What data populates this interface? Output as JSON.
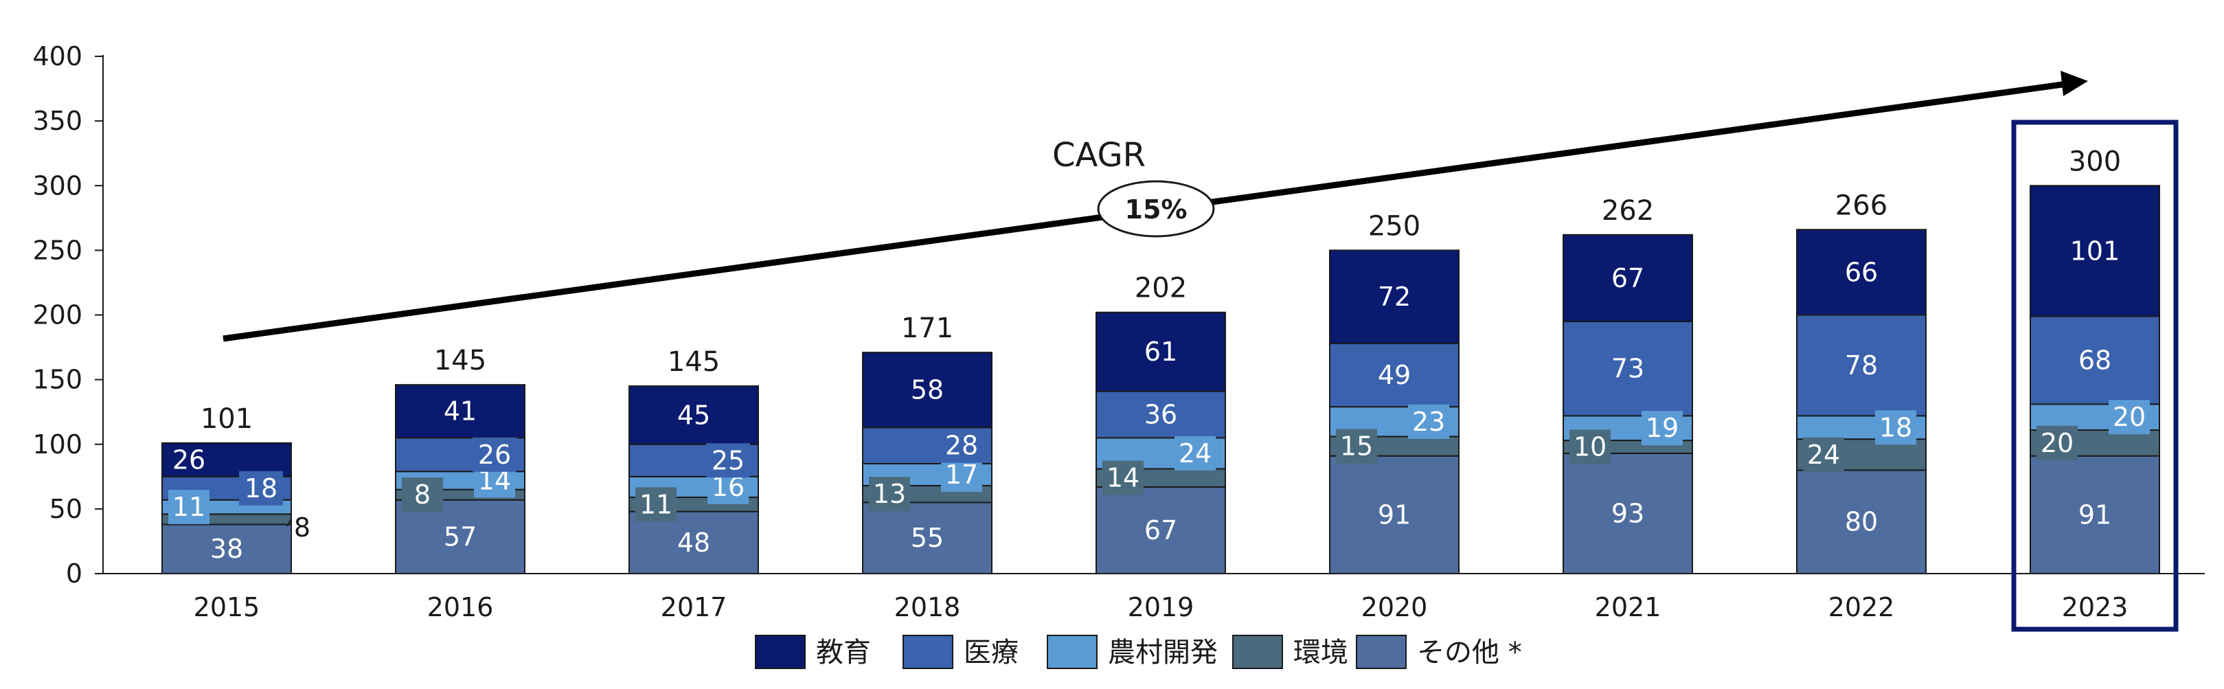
{
  "chart_data": {
    "type": "bar",
    "stacked": true,
    "categories": [
      "2015",
      "2016",
      "2017",
      "2018",
      "2019",
      "2020",
      "2021",
      "2022",
      "2023"
    ],
    "series": [
      {
        "name": "その他 *",
        "color": "#4f6d9e",
        "values": [
          38,
          57,
          48,
          55,
          67,
          91,
          93,
          80,
          91
        ]
      },
      {
        "name": "環境",
        "color": "#4a6a7d",
        "values": [
          8,
          8,
          11,
          13,
          14,
          15,
          10,
          24,
          20
        ]
      },
      {
        "name": "農村開発",
        "color": "#5b9bd5",
        "values": [
          11,
          14,
          16,
          17,
          24,
          23,
          19,
          18,
          20
        ]
      },
      {
        "name": "医療",
        "color": "#3a62ad",
        "values": [
          18,
          26,
          25,
          28,
          36,
          49,
          73,
          78,
          68
        ]
      },
      {
        "name": "教育",
        "color": "#0a1a6e",
        "values": [
          26,
          41,
          45,
          58,
          61,
          72,
          67,
          66,
          101
        ]
      }
    ],
    "totals": [
      101,
      145,
      145,
      171,
      202,
      250,
      262,
      266,
      300
    ],
    "legend_order": [
      "教育",
      "医療",
      "農村開発",
      "環境",
      "その他 *"
    ],
    "y_ticks": [
      "0",
      "50",
      "100",
      "150",
      "200",
      "250",
      "300",
      "350",
      "400"
    ],
    "ylim": [
      0,
      400
    ],
    "annotation": {
      "label": "CAGR",
      "value": "15%"
    },
    "highlight_category": "2023",
    "highlight_color": "#0a1a6e",
    "legend_position": "bottom",
    "grid": false
  }
}
